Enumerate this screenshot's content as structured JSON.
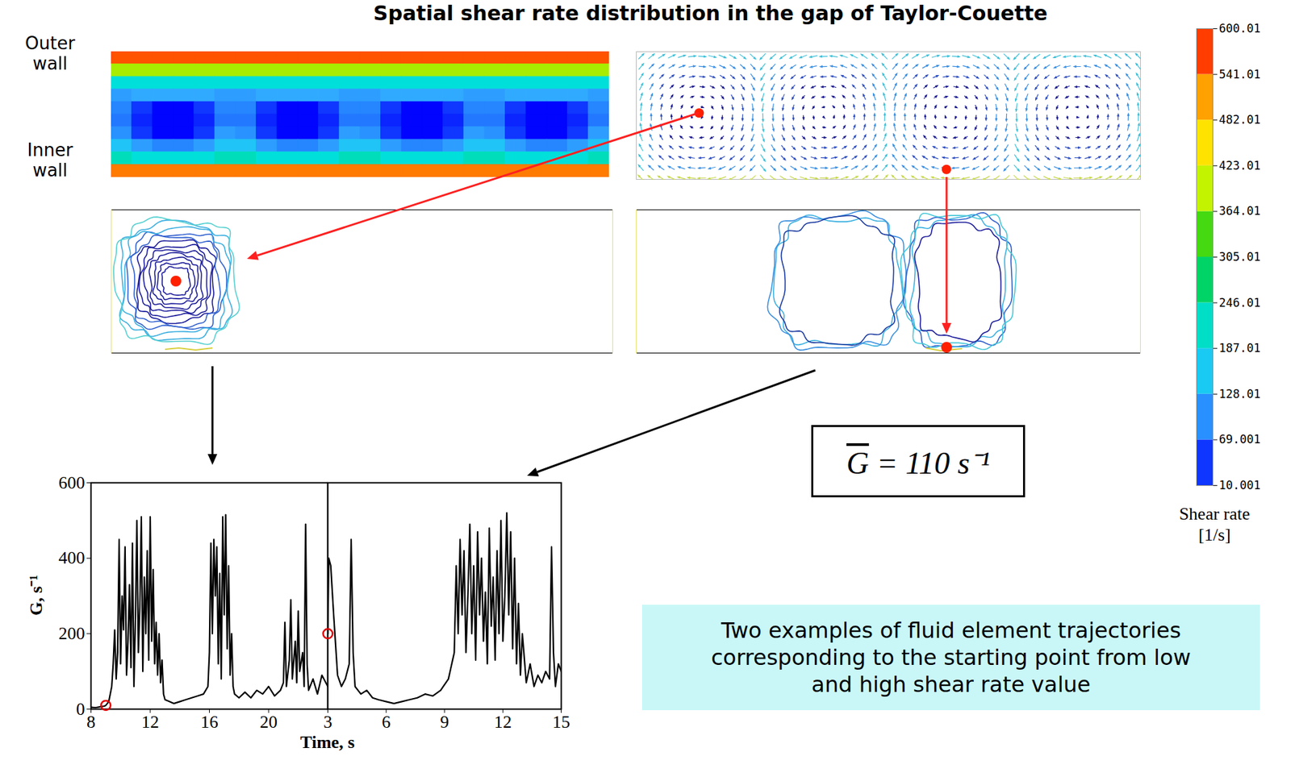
{
  "title": "Spatial shear rate distribution in the gap of Taylor-Couette",
  "wall_labels": {
    "outer": "Outer wall",
    "inner": "Inner wall"
  },
  "shear_field": [
    [
      560,
      560,
      560,
      560,
      560,
      560,
      560,
      560,
      560,
      560,
      560,
      560,
      560,
      560,
      560,
      560,
      560,
      560,
      560,
      560,
      560,
      560,
      560,
      560
    ],
    [
      380,
      380,
      380,
      380,
      380,
      380,
      380,
      380,
      380,
      380,
      380,
      380,
      380,
      380,
      380,
      380,
      380,
      380,
      380,
      380,
      380,
      380,
      380,
      380
    ],
    [
      200,
      200,
      200,
      200,
      200,
      200,
      200,
      200,
      200,
      200,
      200,
      200,
      200,
      200,
      200,
      200,
      200,
      200,
      200,
      200,
      200,
      200,
      200,
      200
    ],
    [
      110,
      120,
      120,
      120,
      120,
      110,
      110,
      120,
      120,
      120,
      120,
      110,
      110,
      120,
      120,
      120,
      120,
      110,
      110,
      120,
      120,
      120,
      120,
      110
    ],
    [
      90,
      40,
      12,
      12,
      40,
      90,
      90,
      40,
      12,
      12,
      40,
      90,
      90,
      40,
      12,
      12,
      40,
      90,
      90,
      40,
      12,
      12,
      40,
      90
    ],
    [
      80,
      30,
      12,
      12,
      30,
      80,
      80,
      30,
      12,
      12,
      30,
      80,
      80,
      30,
      12,
      12,
      30,
      80,
      80,
      30,
      12,
      12,
      30,
      80
    ],
    [
      100,
      40,
      12,
      12,
      40,
      110,
      100,
      40,
      12,
      12,
      40,
      110,
      100,
      40,
      12,
      12,
      40,
      110,
      100,
      40,
      12,
      12,
      40,
      110
    ],
    [
      150,
      110,
      90,
      90,
      110,
      150,
      150,
      110,
      90,
      90,
      110,
      150,
      150,
      110,
      90,
      90,
      110,
      150,
      150,
      110,
      90,
      90,
      110,
      150
    ],
    [
      230,
      200,
      200,
      200,
      200,
      230,
      230,
      200,
      200,
      200,
      200,
      230,
      230,
      200,
      200,
      200,
      200,
      230,
      230,
      200,
      200,
      200,
      200,
      230
    ],
    [
      540,
      540,
      540,
      540,
      540,
      540,
      540,
      540,
      540,
      540,
      540,
      540,
      540,
      540,
      540,
      540,
      540,
      540,
      540,
      540,
      540,
      540,
      540,
      540
    ]
  ],
  "colorbar": {
    "label": "Shear rate",
    "unit": "[1/s]",
    "range": [
      10.001,
      600.01
    ],
    "ticks": [
      10.001,
      69.001,
      128.01,
      187.01,
      246.01,
      305.01,
      364.01,
      423.01,
      482.01,
      541.01,
      600.01
    ]
  },
  "mean_shear": {
    "text": "G = 110 s⁻¹",
    "overline": "G"
  },
  "caption": "Two examples of fluid element trajectories corresponding to the starting point from low and high shear rate value",
  "chart_data": [
    {
      "type": "line",
      "color": "#000000",
      "x_label": "Time, s",
      "y_label": "G, s⁻¹",
      "xlim": [
        8,
        24
      ],
      "xticks": [
        8,
        12,
        16,
        20
      ],
      "ylim": [
        0,
        600
      ],
      "yticks": [
        0,
        200,
        400,
        600
      ],
      "x": [
        8.0,
        8.3,
        8.6,
        8.9,
        9.0,
        9.2,
        9.4,
        9.5,
        9.6,
        9.7,
        9.8,
        9.9,
        10.0,
        10.1,
        10.2,
        10.3,
        10.4,
        10.5,
        10.6,
        10.7,
        10.8,
        10.9,
        11.0,
        11.1,
        11.2,
        11.3,
        11.4,
        11.5,
        11.6,
        11.7,
        11.8,
        11.9,
        12.0,
        12.1,
        12.2,
        12.3,
        12.4,
        12.5,
        12.6,
        12.7,
        12.8,
        12.9,
        13.0,
        13.3,
        13.6,
        14.0,
        14.4,
        14.8,
        15.2,
        15.6,
        15.9,
        16.0,
        16.1,
        16.2,
        16.3,
        16.4,
        16.5,
        16.6,
        16.7,
        16.8,
        16.9,
        17.0,
        17.1,
        17.2,
        17.3,
        17.4,
        17.5,
        17.6,
        17.7,
        18.0,
        18.4,
        18.8,
        19.2,
        19.6,
        20.0,
        20.4,
        20.8,
        21.0,
        21.1,
        21.2,
        21.4,
        21.5,
        21.6,
        21.8,
        21.9,
        22.0,
        22.1,
        22.3,
        22.4,
        22.5,
        22.6,
        22.7,
        23.0,
        23.3,
        23.6,
        24.0
      ],
      "values": [
        5,
        4,
        6,
        8,
        10,
        20,
        60,
        120,
        210,
        80,
        150,
        450,
        120,
        300,
        210,
        430,
        90,
        180,
        330,
        110,
        440,
        60,
        240,
        500,
        150,
        270,
        510,
        100,
        350,
        200,
        420,
        130,
        510,
        180,
        370,
        120,
        230,
        90,
        200,
        70,
        130,
        40,
        25,
        20,
        15,
        20,
        25,
        30,
        35,
        40,
        60,
        150,
        440,
        200,
        450,
        300,
        430,
        120,
        360,
        80,
        510,
        250,
        515,
        160,
        380,
        90,
        200,
        60,
        40,
        30,
        45,
        30,
        50,
        40,
        60,
        35,
        50,
        70,
        230,
        60,
        130,
        290,
        80,
        180,
        70,
        260,
        100,
        150,
        60,
        490,
        120,
        50,
        80,
        40,
        90,
        60
      ],
      "start": {
        "x": 9.0,
        "value": 10,
        "marker": "circle",
        "color": "#e00000"
      }
    },
    {
      "type": "line",
      "color": "#000000",
      "tick_labels": "x",
      "xlim": [
        3,
        15
      ],
      "xticks": [
        3,
        6,
        9,
        12,
        15
      ],
      "ylim": [
        0,
        600
      ],
      "yticks": [
        0,
        200,
        400,
        600
      ],
      "x": [
        3.0,
        3.05,
        3.15,
        3.3,
        3.5,
        3.7,
        3.9,
        4.1,
        4.2,
        4.3,
        4.4,
        4.7,
        5.0,
        5.3,
        5.6,
        6.0,
        6.4,
        6.8,
        7.2,
        7.6,
        8.0,
        8.4,
        8.8,
        9.2,
        9.5,
        9.6,
        9.7,
        9.8,
        9.9,
        10.0,
        10.1,
        10.2,
        10.3,
        10.4,
        10.5,
        10.6,
        10.7,
        10.8,
        10.9,
        11.0,
        11.1,
        11.2,
        11.3,
        11.4,
        11.5,
        11.6,
        11.7,
        11.8,
        11.9,
        12.0,
        12.1,
        12.2,
        12.3,
        12.4,
        12.5,
        12.6,
        12.7,
        12.8,
        12.9,
        13.0,
        13.2,
        13.4,
        13.6,
        13.8,
        14.0,
        14.2,
        14.4,
        14.5,
        14.6,
        14.7,
        14.85,
        15.0
      ],
      "values": [
        200,
        400,
        380,
        250,
        90,
        60,
        80,
        120,
        450,
        150,
        60,
        40,
        50,
        30,
        25,
        20,
        15,
        20,
        25,
        30,
        40,
        35,
        50,
        80,
        150,
        380,
        200,
        450,
        250,
        420,
        150,
        300,
        490,
        200,
        380,
        130,
        470,
        250,
        400,
        180,
        310,
        120,
        480,
        220,
        350,
        130,
        420,
        200,
        500,
        180,
        300,
        520,
        250,
        470,
        160,
        400,
        120,
        280,
        90,
        200,
        70,
        120,
        60,
        90,
        70,
        100,
        80,
        430,
        150,
        60,
        120,
        100
      ],
      "start": {
        "x": 3.0,
        "value": 200,
        "marker": "circle",
        "color": "#e00000"
      }
    }
  ]
}
